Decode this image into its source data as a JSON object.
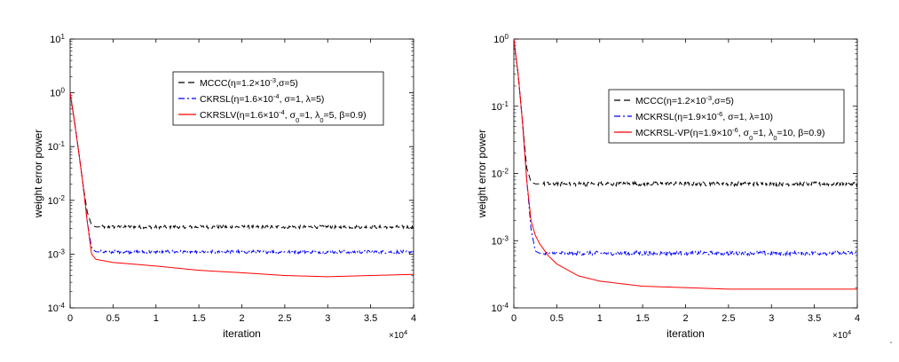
{
  "chart_data": [
    {
      "type": "line",
      "xlabel": "iteration",
      "ylabel": "weight error power",
      "x_multiplier": "×10",
      "x_multiplier_exp": "4",
      "xlim": [
        0,
        4
      ],
      "ylim_log10": [
        -4,
        1
      ],
      "yscale": "log",
      "x_ticks": [
        "0",
        "0.5",
        "1",
        "1.5",
        "2",
        "2.5",
        "3",
        "3.5",
        "4"
      ],
      "y_ticks": [
        {
          "base": "10",
          "exp": "1"
        },
        {
          "base": "10",
          "exp": "0"
        },
        {
          "base": "10",
          "exp": "-1"
        },
        {
          "base": "10",
          "exp": "-2"
        },
        {
          "base": "10",
          "exp": "-3"
        },
        {
          "base": "10",
          "exp": "-4"
        }
      ],
      "legend_position": "top-right",
      "series": [
        {
          "name": "MCCC(η=1.2×10⁻³,σ=5)",
          "color": "#000000",
          "style": "dashed",
          "x": [
            0,
            0.05,
            0.1,
            0.15,
            0.2,
            0.25,
            0.3,
            0.5,
            1,
            1.5,
            2,
            2.5,
            3,
            3.5,
            4
          ],
          "y": [
            1.0,
            0.3,
            0.08,
            0.02,
            0.006,
            0.0035,
            0.0032,
            0.0032,
            0.0032,
            0.0032,
            0.0032,
            0.0032,
            0.0032,
            0.0032,
            0.0032
          ]
        },
        {
          "name": "CKRSL(η=1.6×10⁻⁴, σ=1, λ=5)",
          "color": "#0000ff",
          "style": "dashdot",
          "x": [
            0,
            0.05,
            0.1,
            0.15,
            0.2,
            0.25,
            0.3,
            0.5,
            1,
            1.5,
            2,
            2.5,
            3,
            3.5,
            4
          ],
          "y": [
            1.0,
            0.3,
            0.08,
            0.02,
            0.004,
            0.0013,
            0.0011,
            0.0011,
            0.0011,
            0.0011,
            0.0011,
            0.0011,
            0.0011,
            0.0011,
            0.0011
          ]
        },
        {
          "name": "CKRSLV(η=1.6×10⁻⁴, σ₀=1, λ₀=5, β=0.9)",
          "color": "#ff0000",
          "style": "solid",
          "x": [
            0,
            0.05,
            0.1,
            0.15,
            0.2,
            0.25,
            0.3,
            0.5,
            1,
            1.5,
            2,
            2.5,
            3,
            3.5,
            4
          ],
          "y": [
            1.0,
            0.3,
            0.08,
            0.02,
            0.004,
            0.001,
            0.0008,
            0.0007,
            0.0006,
            0.0005,
            0.00045,
            0.0004,
            0.00038,
            0.0004,
            0.00042
          ]
        }
      ]
    },
    {
      "type": "line",
      "xlabel": "iteration",
      "ylabel": "weight error power",
      "x_multiplier": "×10",
      "x_multiplier_exp": "4",
      "xlim": [
        0,
        4
      ],
      "ylim_log10": [
        -4,
        0
      ],
      "yscale": "log",
      "x_ticks": [
        "0",
        "0.5",
        "1",
        "1.5",
        "2",
        "2.5",
        "3",
        "3.5",
        "4"
      ],
      "y_ticks": [
        {
          "base": "10",
          "exp": "0"
        },
        {
          "base": "10",
          "exp": "-1"
        },
        {
          "base": "10",
          "exp": "-2"
        },
        {
          "base": "10",
          "exp": "-3"
        },
        {
          "base": "10",
          "exp": "-4"
        }
      ],
      "legend_position": "top-right",
      "series": [
        {
          "name": "MCCC(η=1.2×10⁻³,σ=5)",
          "color": "#000000",
          "style": "dashed",
          "x": [
            0,
            0.05,
            0.1,
            0.15,
            0.2,
            0.25,
            0.3,
            0.5,
            1,
            1.5,
            2,
            2.5,
            3,
            3.5,
            4
          ],
          "y": [
            1.0,
            0.3,
            0.06,
            0.012,
            0.0075,
            0.007,
            0.007,
            0.007,
            0.007,
            0.007,
            0.007,
            0.007,
            0.007,
            0.007,
            0.007
          ]
        },
        {
          "name": "MCKRSL(η=1.9×10⁻⁶, σ=1, λ=10)",
          "color": "#0000ff",
          "style": "dashdot",
          "x": [
            0,
            0.05,
            0.1,
            0.15,
            0.2,
            0.25,
            0.3,
            0.5,
            1,
            1.5,
            2,
            2.5,
            3,
            3.5,
            4
          ],
          "y": [
            1.0,
            0.3,
            0.06,
            0.008,
            0.0015,
            0.0007,
            0.00065,
            0.00065,
            0.00065,
            0.00065,
            0.00065,
            0.00065,
            0.00065,
            0.00065,
            0.00065
          ]
        },
        {
          "name": "MCKRSL-VP(η=1.9×10⁻⁶, σ₀=1, λ₀=10, β=0.9)",
          "color": "#ff0000",
          "style": "solid",
          "x": [
            0,
            0.05,
            0.1,
            0.15,
            0.2,
            0.25,
            0.3,
            0.4,
            0.5,
            0.75,
            1,
            1.5,
            2,
            2.5,
            3,
            3.5,
            4
          ],
          "y": [
            1.0,
            0.3,
            0.06,
            0.008,
            0.002,
            0.0012,
            0.0009,
            0.0006,
            0.00045,
            0.0003,
            0.00025,
            0.00021,
            0.0002,
            0.00019,
            0.00019,
            0.00019,
            0.00019
          ]
        }
      ]
    }
  ]
}
